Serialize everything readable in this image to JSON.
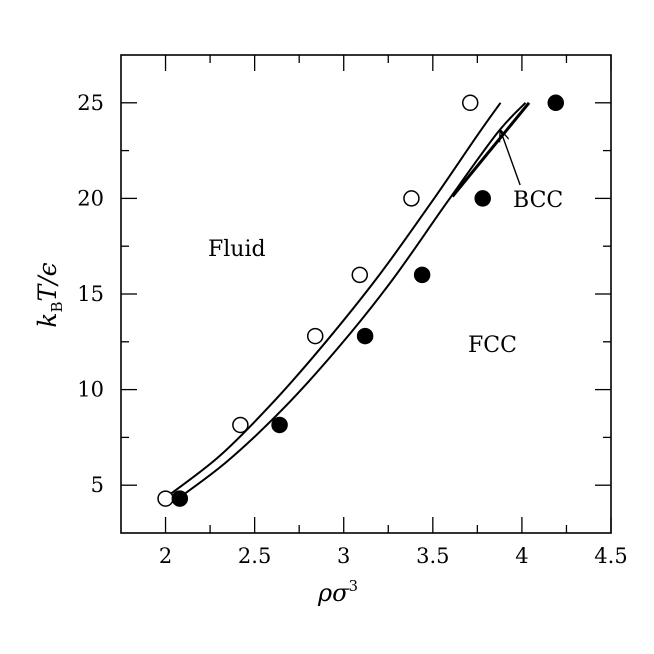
{
  "chart_data": {
    "type": "scatter",
    "xlabel": "ρσ³",
    "ylabel": "k_B T/ϵ",
    "ylabel_parts": {
      "k": "k",
      "sub": "B",
      "T": "T",
      "rest": "/ϵ"
    },
    "xlabel_parts": {
      "base": "ρσ",
      "sup": "3"
    },
    "xlim": [
      1.75,
      4.5
    ],
    "ylim": [
      2.5,
      27.5
    ],
    "xticks": [
      2,
      2.5,
      3,
      3.5,
      4,
      4.5
    ],
    "xtick_labels": [
      "2",
      "2.5",
      "3",
      "3.5",
      "4",
      "4.5"
    ],
    "yticks": [
      5,
      10,
      15,
      20,
      25
    ],
    "ytick_labels": [
      "5",
      "10",
      "15",
      "20",
      "25"
    ],
    "grid": false,
    "region_labels": [
      "Fluid",
      "FCC",
      "BCC"
    ],
    "series": [
      {
        "marker": "open-circle",
        "points": [
          [
            2.0,
            4.3
          ],
          [
            2.42,
            8.15
          ],
          [
            2.84,
            12.8
          ],
          [
            3.09,
            16.0
          ],
          [
            3.38,
            20.0
          ],
          [
            3.71,
            25.0
          ]
        ]
      },
      {
        "marker": "filled-circle",
        "points": [
          [
            2.08,
            4.3
          ],
          [
            2.64,
            8.15
          ],
          [
            3.12,
            12.8
          ],
          [
            3.44,
            16.0
          ],
          [
            3.78,
            20.0
          ],
          [
            4.19,
            25.0
          ]
        ]
      }
    ],
    "curves": [
      {
        "name": "freezing line",
        "points": [
          [
            2.0,
            4.35
          ],
          [
            2.3,
            6.5
          ],
          [
            2.6,
            9.3
          ],
          [
            2.9,
            12.5
          ],
          [
            3.2,
            16.0
          ],
          [
            3.5,
            19.9
          ],
          [
            3.75,
            23.3
          ],
          [
            3.88,
            25.0
          ]
        ]
      },
      {
        "name": "melting line",
        "points": [
          [
            2.04,
            4.1
          ],
          [
            2.34,
            6.2
          ],
          [
            2.66,
            9.0
          ],
          [
            2.97,
            12.2
          ],
          [
            3.27,
            15.7
          ],
          [
            3.58,
            19.8
          ],
          [
            3.86,
            23.4
          ],
          [
            4.02,
            25.0
          ]
        ]
      },
      {
        "name": "BCC boundary",
        "points": [
          [
            3.61,
            20.1
          ],
          [
            4.04,
            25.0
          ]
        ]
      }
    ],
    "annotation_arrow": {
      "label": "BCC",
      "from": [
        3.99,
        20.7
      ],
      "to": [
        3.88,
        23.55
      ]
    }
  }
}
